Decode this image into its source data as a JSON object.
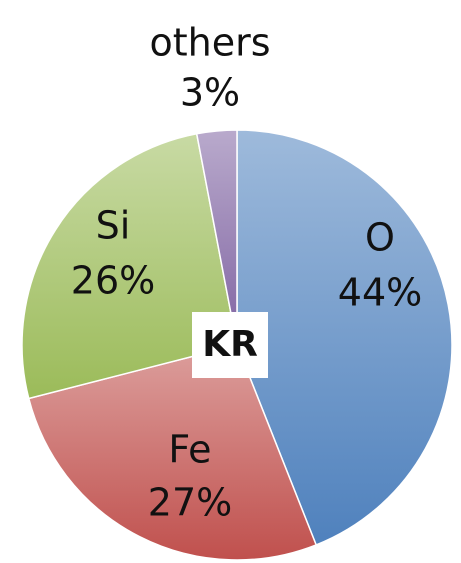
{
  "chart_data": {
    "type": "pie",
    "categories": [
      "O",
      "Fe",
      "Si",
      "others"
    ],
    "values": [
      44,
      27,
      26,
      3
    ],
    "value_labels": [
      "44%",
      "27%",
      "26%",
      "3%"
    ],
    "colors": [
      "#4f81bd",
      "#c0504d",
      "#9bbb59",
      "#8064a2"
    ],
    "annotation": "KR"
  }
}
